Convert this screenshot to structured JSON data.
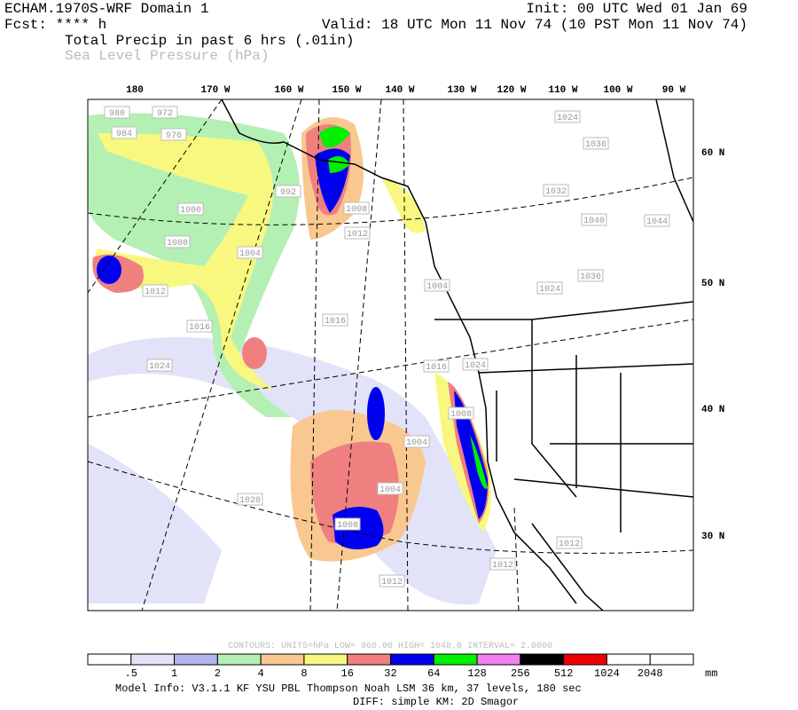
{
  "header": {
    "left": [
      "ECHAM.1970S-WRF Domain 1",
      "Fcst: **** h",
      "Total Precip in past 6 hrs (.01in)",
      "Sea Level Pressure (hPa)"
    ],
    "init": "Init: 00 UTC Wed 01 Jan 69",
    "valid": "Valid: 18 UTC Mon 11 Nov 74 (10 PST Mon 11 Nov 74)"
  },
  "longitudes": [
    "180",
    "170 W",
    "160 W",
    "150 W",
    "140 W",
    "130 W",
    "120 W",
    "110 W",
    "100 W",
    "90 W"
  ],
  "latitudes": [
    "60 N",
    "50 N",
    "40 N",
    "30 N"
  ],
  "pressure_labels": [
    "980",
    "972",
    "984",
    "976",
    "992",
    "1000",
    "1004",
    "1008",
    "1008",
    "1004",
    "1012",
    "1016",
    "1016",
    "1024",
    "1024",
    "1012",
    "1020",
    "1004",
    "1008",
    "1012",
    "1004",
    "1012",
    "1024",
    "1036",
    "1032",
    "1040",
    "1044",
    "1036",
    "1024",
    "1016",
    "1012",
    "1008"
  ],
  "contour_info": "CONTOURS:  UNITS=hPa  LOW=  960.00      HIGH=  1048.0      INTERVAL=   2.0000",
  "colorbar": {
    "labels": [
      ".5",
      "1",
      "2",
      "4",
      "8",
      "16",
      "32",
      "64",
      "128",
      "256",
      "512",
      "1024",
      "2048"
    ],
    "colors": [
      "#ffffff",
      "#e2e2f8",
      "#b4b4f0",
      "#b4f0b4",
      "#f8c890",
      "#f8f880",
      "#f08080",
      "#0000f0",
      "#00f000",
      "#f080f0",
      "#000000",
      "#f00000",
      "#ffffff",
      "#ffffff"
    ],
    "units": "mm"
  },
  "footer": [
    "Model Info: V3.1.1    KF       YSU PBL   Thompson     Noah LSM   36 km,    37 levels,  180 sec",
    "DIFF: simple KM: 2D Smagor"
  ]
}
